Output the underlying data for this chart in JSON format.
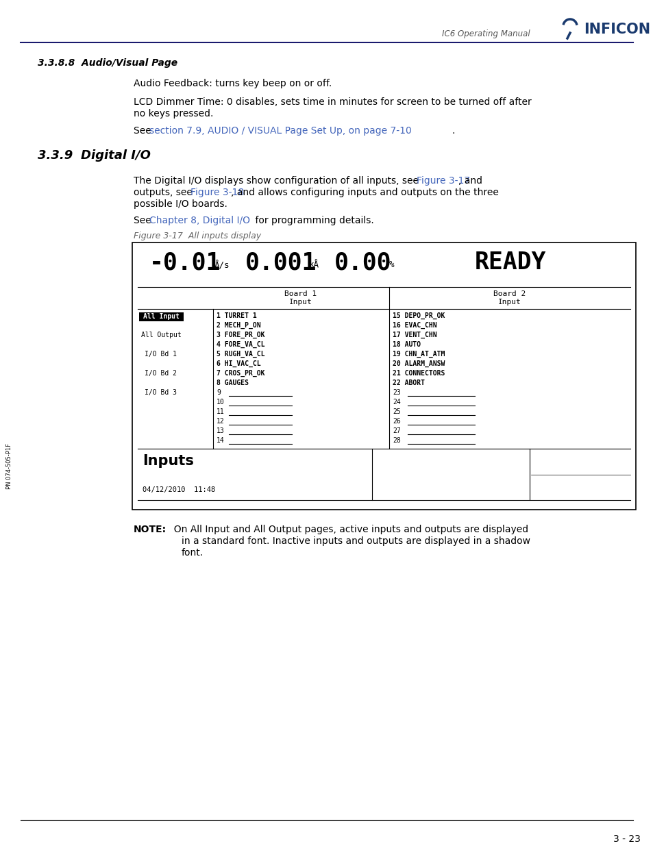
{
  "page_header_text": "IC6 Operating Manual",
  "page_number": "3 - 23",
  "header_line_color": "#1a1a6e",
  "logo_text": "INFICON",
  "section_388_title": "3.3.8.8  Audio/Visual Page",
  "para1": "Audio Feedback: turns key beep on or off.",
  "para2a": "LCD Dimmer Time: 0 disables, sets time in minutes for screen to be turned off after",
  "para2b": "no keys pressed.",
  "para3_pre": "See ",
  "para3_link": "section 7.9, AUDIO / VISUAL Page Set Up, on page 7-10",
  "para3_post": ".",
  "section_339_num": "3.3.9  ",
  "section_339_italic": "Digital I/O",
  "para4a_pre": "The Digital I/O displays show configuration of all inputs, see ",
  "para4a_link": "Figure 3-17",
  "para4a_post": ", and",
  "para4b_pre": "outputs, see ",
  "para4b_link": "Figure 3-18",
  "para4b_post": ", and allows configuring inputs and outputs on the three",
  "para4c": "possible I/O boards.",
  "para5_pre": "See ",
  "para5_link1": "Chapter 8, Digital I/O",
  "para5_post": " for programming details.",
  "fig_caption": "Figure 3-17  All inputs display",
  "note_bold": "NOTE:",
  "note_line1": "  On All Input and All Output pages, active inputs and outputs are displayed",
  "note_line2": "in a standard font. Inactive inputs and outputs are displayed in a shadow",
  "note_line3": "font.",
  "sidebar_text": "PN 074-505-P1F",
  "link_color": "#4466bb",
  "text_color": "#000000",
  "bg_color": "#ffffff",
  "b1_items": [
    "1 TURRET 1",
    "2 MECH_P_ON",
    "3 FORE_PR_OK",
    "4 FORE_VA_CL",
    "5 RUGH_VA_CL",
    "6 HI_VAC_CL",
    "7 CROS_PR_OK",
    "8 GAUGES",
    "9",
    "10",
    "11",
    "12",
    "13",
    "14"
  ],
  "b2_items": [
    "15 DEPO_PR_OK",
    "16 EVAC_CHN",
    "17 VENT_CHN",
    "18 AUTO",
    "19 CHN_AT_ATM",
    "20 ALARM_ANSW",
    "21 CONNECTORS",
    "22 ABORT",
    "23",
    "24",
    "25",
    "26",
    "27",
    "28"
  ],
  "sidebar_labels": [
    "All Input",
    "All Output",
    "I/O Bd 1",
    "I/O Bd 2",
    "I/O Bd 3"
  ],
  "datetime": "04/12/2010  11:48",
  "display_line": "-0.01Å/s    0.001kÅ    0.00%                  READY"
}
